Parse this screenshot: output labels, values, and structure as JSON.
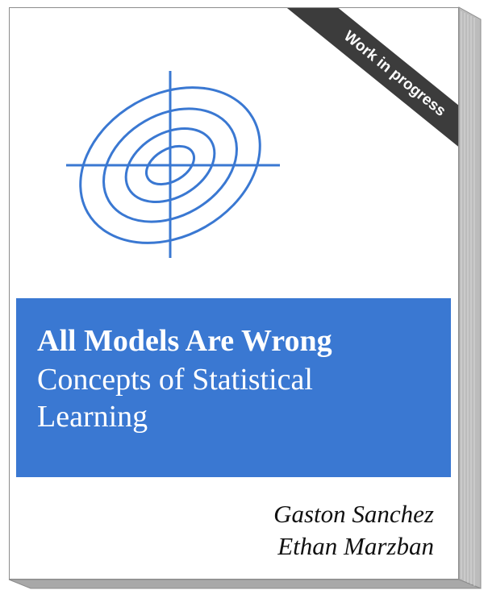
{
  "cover": {
    "banner_text": "Work in progress",
    "title_main": "All Models Are Wrong",
    "title_sub": "Concepts of Statistical Learning",
    "authors": [
      "Gaston Sanchez",
      "Ethan Marzban"
    ]
  },
  "colors": {
    "title_bg": "#3a78d2",
    "logo_stroke": "#3a78d2",
    "banner_bg": "#3c3c3c",
    "book_edge": "#bcbcbc"
  },
  "icons": {
    "logo": "ellipses-crosshair-icon"
  }
}
